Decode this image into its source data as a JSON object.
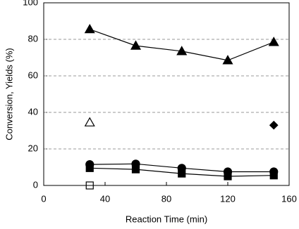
{
  "chart_data": {
    "type": "line",
    "xlabel": "Reaction Time (min)",
    "ylabel": "Conversion, Yields (%)",
    "xlim": [
      0,
      160
    ],
    "xticks": [
      0,
      40,
      80,
      120,
      160
    ],
    "ylim": [
      0,
      100
    ],
    "yticks": [
      0,
      20,
      40,
      60,
      80,
      100
    ],
    "grid": true,
    "series": [
      {
        "color": "#000000",
        "marker": "triangle",
        "marker_fill": "#000000",
        "line": true,
        "x": [
          30,
          60,
          90,
          120,
          150
        ],
        "values": [
          85.5,
          76.5,
          73.5,
          68.5,
          78.5
        ]
      },
      {
        "color": "#000000",
        "marker": "circle",
        "marker_fill": "#000000",
        "line": true,
        "x": [
          30,
          60,
          90,
          120,
          150
        ],
        "values": [
          11.5,
          11.8,
          9.5,
          7.5,
          7.5
        ]
      },
      {
        "color": "#000000",
        "marker": "square",
        "marker_fill": "#000000",
        "line": true,
        "x": [
          30,
          60,
          90,
          120,
          150
        ],
        "values": [
          9.5,
          8.8,
          6.5,
          5,
          5.5
        ]
      },
      {
        "color": "#000000",
        "marker": "triangle",
        "marker_fill": "none",
        "line": false,
        "x": [
          30
        ],
        "values": [
          34.5
        ]
      },
      {
        "color": "#000000",
        "marker": "square",
        "marker_fill": "none",
        "line": false,
        "x": [
          30
        ],
        "values": [
          0
        ]
      },
      {
        "color": "#000000",
        "marker": "diamond",
        "marker_fill": "#000000",
        "line": false,
        "x": [
          150
        ],
        "values": [
          33
        ]
      }
    ]
  }
}
